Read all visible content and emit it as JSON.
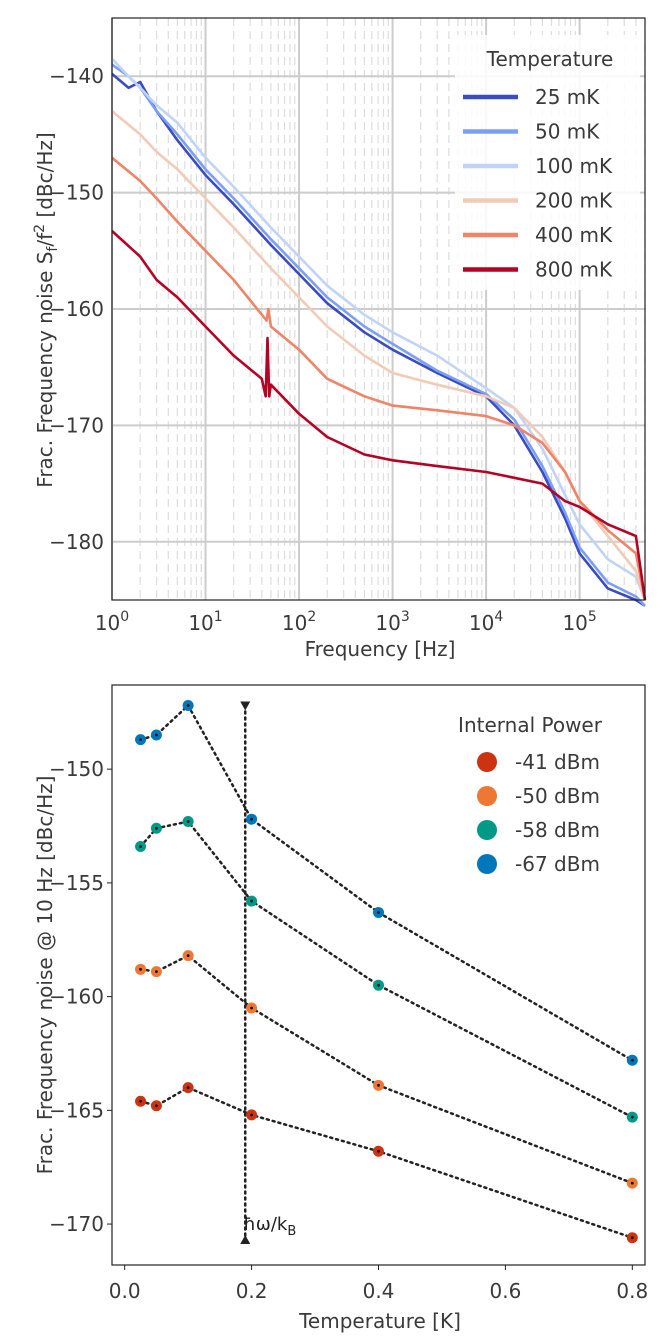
{
  "chart_data": [
    {
      "type": "line",
      "xlabel": "Frequency [Hz]",
      "ylabel_parts": [
        "Frac. Frequency noise S",
        "f",
        "/f",
        "2",
        " [dBc/Hz]"
      ],
      "xscale": "log",
      "xlim": [
        1,
        500000
      ],
      "ylim": [
        -185,
        -135
      ],
      "x_ticks": [
        1,
        10,
        100,
        1000,
        10000,
        100000
      ],
      "x_tick_labels": [
        {
          "base": "10",
          "exp": "0"
        },
        {
          "base": "10",
          "exp": "1"
        },
        {
          "base": "10",
          "exp": "2"
        },
        {
          "base": "10",
          "exp": "3"
        },
        {
          "base": "10",
          "exp": "4"
        },
        {
          "base": "10",
          "exp": "5"
        }
      ],
      "y_ticks": [
        -140,
        -150,
        -160,
        -170,
        -180
      ],
      "y_tick_labels": [
        "−140",
        "−150",
        "−160",
        "−170",
        "−180"
      ],
      "grid": true,
      "legend": {
        "title": "Temperature",
        "position": "top-right"
      },
      "series": [
        {
          "name": "25 mK",
          "color": "#3b4cc0",
          "points": [
            [
              1,
              -139.8
            ],
            [
              1.5,
              -141
            ],
            [
              2,
              -140.5
            ],
            [
              3,
              -143
            ],
            [
              5,
              -145.5
            ],
            [
              10,
              -148.5
            ],
            [
              20,
              -151
            ],
            [
              50,
              -154.5
            ],
            [
              100,
              -157
            ],
            [
              200,
              -159.5
            ],
            [
              500,
              -162
            ],
            [
              1000,
              -163.5
            ],
            [
              3000,
              -165.5
            ],
            [
              10000,
              -167.5
            ],
            [
              20000,
              -170
            ],
            [
              40000,
              -174
            ],
            [
              70000,
              -178
            ],
            [
              100000,
              -181
            ],
            [
              200000,
              -184
            ],
            [
              400000,
              -185
            ],
            [
              500000,
              -185.5
            ]
          ]
        },
        {
          "name": "50 mK",
          "color": "#7b9ff9",
          "points": [
            [
              1,
              -139
            ],
            [
              1.5,
              -140
            ],
            [
              2,
              -141
            ],
            [
              3,
              -143
            ],
            [
              5,
              -145
            ],
            [
              10,
              -148
            ],
            [
              20,
              -150.5
            ],
            [
              50,
              -154
            ],
            [
              100,
              -156.5
            ],
            [
              200,
              -159
            ],
            [
              500,
              -161.5
            ],
            [
              1000,
              -163
            ],
            [
              3000,
              -165.3
            ],
            [
              10000,
              -167.3
            ],
            [
              20000,
              -169.5
            ],
            [
              40000,
              -173.5
            ],
            [
              70000,
              -177.5
            ],
            [
              100000,
              -180.5
            ],
            [
              200000,
              -183.5
            ],
            [
              400000,
              -184.7
            ],
            [
              500000,
              -185.5
            ]
          ]
        },
        {
          "name": "100 mK",
          "color": "#c0d4f5",
          "points": [
            [
              1,
              -138.5
            ],
            [
              1.5,
              -140
            ],
            [
              2,
              -141
            ],
            [
              3,
              -142.5
            ],
            [
              5,
              -144
            ],
            [
              10,
              -147
            ],
            [
              20,
              -149.5
            ],
            [
              50,
              -153
            ],
            [
              100,
              -155.5
            ],
            [
              200,
              -158
            ],
            [
              500,
              -160.5
            ],
            [
              1000,
              -162
            ],
            [
              3000,
              -164
            ],
            [
              10000,
              -166.8
            ],
            [
              20000,
              -168.5
            ],
            [
              40000,
              -172
            ],
            [
              70000,
              -176
            ],
            [
              100000,
              -178.5
            ],
            [
              200000,
              -181.5
            ],
            [
              400000,
              -183
            ],
            [
              500000,
              -185
            ]
          ]
        },
        {
          "name": "200 mK",
          "color": "#f2cbb7",
          "points": [
            [
              1,
              -143
            ],
            [
              2,
              -145
            ],
            [
              3,
              -146.5
            ],
            [
              5,
              -148
            ],
            [
              10,
              -150.5
            ],
            [
              20,
              -153
            ],
            [
              50,
              -156.5
            ],
            [
              100,
              -159
            ],
            [
              200,
              -161.5
            ],
            [
              500,
              -164
            ],
            [
              1000,
              -165.5
            ],
            [
              3000,
              -166.5
            ],
            [
              10000,
              -167.5
            ],
            [
              20000,
              -168.5
            ],
            [
              40000,
              -171
            ],
            [
              70000,
              -174
            ],
            [
              100000,
              -176.5
            ],
            [
              200000,
              -179.5
            ],
            [
              400000,
              -182.5
            ],
            [
              500000,
              -185
            ]
          ]
        },
        {
          "name": "400 mK",
          "color": "#ee8468",
          "points": [
            [
              1,
              -147
            ],
            [
              2,
              -149
            ],
            [
              3,
              -150.5
            ],
            [
              5,
              -152.5
            ],
            [
              10,
              -155
            ],
            [
              20,
              -157.5
            ],
            [
              45,
              -161
            ],
            [
              47,
              -160
            ],
            [
              50,
              -161.5
            ],
            [
              100,
              -163.5
            ],
            [
              200,
              -166
            ],
            [
              500,
              -167.5
            ],
            [
              1000,
              -168.3
            ],
            [
              3000,
              -168.7
            ],
            [
              10000,
              -169.2
            ],
            [
              20000,
              -170
            ],
            [
              40000,
              -171.5
            ],
            [
              70000,
              -174
            ],
            [
              100000,
              -176.5
            ],
            [
              200000,
              -179
            ],
            [
              400000,
              -181
            ],
            [
              500000,
              -185
            ]
          ]
        },
        {
          "name": "800 mK",
          "color": "#b40426",
          "points": [
            [
              1,
              -153.3
            ],
            [
              2,
              -155.5
            ],
            [
              3,
              -157.5
            ],
            [
              5,
              -159
            ],
            [
              10,
              -161.5
            ],
            [
              20,
              -164
            ],
            [
              40,
              -166
            ],
            [
              44,
              -167.5
            ],
            [
              46,
              -162.5
            ],
            [
              48,
              -167.5
            ],
            [
              50,
              -166.5
            ],
            [
              100,
              -169
            ],
            [
              200,
              -171
            ],
            [
              500,
              -172.5
            ],
            [
              1000,
              -173
            ],
            [
              3000,
              -173.5
            ],
            [
              10000,
              -174
            ],
            [
              20000,
              -174.5
            ],
            [
              40000,
              -175
            ],
            [
              70000,
              -176.5
            ],
            [
              100000,
              -177
            ],
            [
              200000,
              -178.5
            ],
            [
              400000,
              -179.5
            ],
            [
              500000,
              -185
            ]
          ]
        }
      ]
    },
    {
      "type": "scatter",
      "xlabel": "Temperature [K]",
      "ylabel": "Frac. Frequency noise @ 10 Hz [dBc/Hz]",
      "xlim": [
        -0.02,
        0.82
      ],
      "ylim": [
        -171.8,
        -146.3
      ],
      "x_ticks": [
        0.0,
        0.2,
        0.4,
        0.6,
        0.8
      ],
      "x_tick_labels": [
        "0.0",
        "0.2",
        "0.4",
        "0.6",
        "0.8"
      ],
      "y_ticks": [
        -150,
        -155,
        -160,
        -165,
        -170
      ],
      "y_tick_labels": [
        "−150",
        "−155",
        "−160",
        "−165",
        "−170"
      ],
      "grid": false,
      "legend": {
        "title": "Internal Power",
        "position": "top-right"
      },
      "x": [
        0.025,
        0.05,
        0.1,
        0.2,
        0.4,
        0.8
      ],
      "series": [
        {
          "name": "-41 dBm",
          "color": "#cc3311",
          "values": [
            -164.6,
            -164.8,
            -164.0,
            -165.2,
            -166.8,
            -170.6
          ]
        },
        {
          "name": "-50 dBm",
          "color": "#ee7733",
          "values": [
            -158.8,
            -158.9,
            -158.2,
            -160.5,
            -163.9,
            -168.2
          ]
        },
        {
          "name": "-58 dBm",
          "color": "#009988",
          "values": [
            -153.4,
            -152.6,
            -152.3,
            -155.8,
            -159.5,
            -165.3
          ]
        },
        {
          "name": "-67 dBm",
          "color": "#0077bb",
          "values": [
            -148.7,
            -148.5,
            -147.2,
            -152.2,
            -156.3,
            -162.8
          ]
        }
      ],
      "annotation": {
        "x": 0.19,
        "y_top": -147.2,
        "y_bottom": -170.7,
        "label": "ħω/k",
        "label_sub": "B"
      }
    }
  ]
}
